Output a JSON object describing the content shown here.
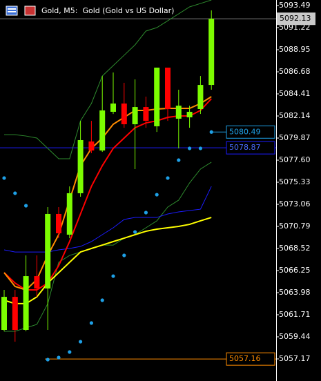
{
  "chart_data": {
    "type": "candlestick",
    "title": "Gold, M5:  Gold (Gold vs US Dollar)",
    "ylim": [
      5054.9,
      5094.06
    ],
    "yticks": [
      5093.49,
      5091.22,
      5088.95,
      5086.68,
      5084.41,
      5082.14,
      5079.87,
      {
        "value": 5077.6,
        "label": "5077.60"
      },
      5075.33,
      5073.06,
      5070.79,
      5068.52,
      5066.25,
      5063.98,
      5061.71,
      5059.44,
      5057.17
    ],
    "up_color": "#7cfc00",
    "down_color": "#ff0000",
    "open": [
      5060.15,
      5063.55,
      5060.15,
      5065.68,
      5064.41,
      5072.07,
      5069.94,
      5074.2,
      5079.52,
      5078.59,
      5082.57,
      5083.42,
      5081.29,
      5083.06,
      5081.08,
      5087.11,
      5081.86,
      5082.0,
      5082.85,
      5085.33
    ],
    "high": [
      5064.26,
      5064.26,
      5067.81,
      5067.81,
      5072.78,
      5072.78,
      5074.9,
      5081.64,
      5081.64,
      5086.25,
      5086.61,
      5085.55,
      5085.9,
      5084.13,
      5087.11,
      5087.11,
      5084.84,
      5083.2,
      5086.25,
      5092.99
    ],
    "low": [
      5060.01,
      5058.94,
      5060.01,
      5063.55,
      5060.15,
      5069.58,
      5069.58,
      5073.84,
      5078.31,
      5078.45,
      5082.35,
      5080.93,
      5076.68,
      5080.93,
      5080.5,
      5081.64,
      5078.81,
      5080.93,
      5082.35,
      5084.84
    ],
    "close": [
      5063.55,
      5060.15,
      5065.68,
      5064.41,
      5072.07,
      5070.08,
      5074.2,
      5079.66,
      5078.59,
      5082.71,
      5083.42,
      5081.29,
      5083.06,
      5081.64,
      5087.11,
      5082.85,
      5083.2,
      5082.57,
      5085.33,
      5092.13
    ],
    "series": [
      {
        "color": "#2e8b2e",
        "style": "line",
        "values": [
          5080.22,
          5080.22,
          5080.08,
          5079.87,
          5078.81,
          5077.74,
          5077.74,
          5081.64,
          5083.42,
          5086.25,
          5087.32,
          5088.38,
          5089.45,
          5090.87,
          5091.22,
          5091.93,
          5092.64,
          5093.35,
          5093.7,
          5094.06
        ]
      },
      {
        "color": "#2e8b2e",
        "style": "line",
        "values": [
          5060.01,
          5060.01,
          5060.36,
          5060.72,
          5062.85,
          5067.1,
          5067.81,
          5068.16,
          5068.52,
          5068.87,
          5068.87,
          5069.58,
          5069.94,
          5070.65,
          5071.36,
          5072.78,
          5073.49,
          5075.26,
          5076.68,
          5077.39
        ]
      },
      {
        "color": "#1c1cff",
        "style": "line",
        "values": [
          5068.38,
          5068.16,
          5068.16,
          5068.16,
          5068.16,
          5068.38,
          5068.52,
          5068.73,
          5069.23,
          5069.94,
          5070.65,
          5071.5,
          5071.71,
          5071.71,
          5071.71,
          5072.07,
          5072.28,
          5072.42,
          5072.56,
          5074.9
        ]
      },
      {
        "color": "#ffff00",
        "style": "line",
        "values": [
          5063.2,
          5062.85,
          5062.85,
          5063.55,
          5064.97,
          5066.04,
          5067.1,
          5068.16,
          5068.52,
          5068.87,
          5069.23,
          5069.58,
          5069.94,
          5070.29,
          5070.51,
          5070.65,
          5070.79,
          5071.0,
          5071.36,
          5071.71
        ]
      },
      {
        "color": "#ff0000",
        "style": "line",
        "values": [
          5066.04,
          5064.97,
          5064.26,
          5064.26,
          5064.97,
          5066.75,
          5069.23,
          5072.07,
          5074.9,
          5077.03,
          5078.81,
          5079.87,
          5080.93,
          5081.43,
          5081.64,
          5082.0,
          5082.14,
          5082.14,
          5082.71,
          5083.91
        ]
      },
      {
        "color": "#ff8c00",
        "style": "line",
        "values": [
          5066.04,
          5064.62,
          5064.26,
          5065.33,
          5067.81,
          5069.94,
          5073.49,
          5077.03,
          5078.81,
          5079.87,
          5081.29,
          5082.0,
          5082.71,
          5082.71,
          5082.85,
          5082.92,
          5082.92,
          5082.92,
          5083.42,
          5084.13
        ]
      },
      {
        "color": "#1ea0e6",
        "style": "dots",
        "values": [
          5075.76,
          5074.2,
          5072.92,
          null,
          5057.1,
          5057.31,
          5057.88,
          5058.94,
          5060.86,
          5063.2,
          5065.68,
          5067.81,
          5070.22,
          5072.21,
          5074.05,
          5075.76,
          5077.6,
          5078.81,
          5078.81,
          5080.49
        ]
      }
    ],
    "hlines": [
      {
        "value": 5092.13,
        "color": "#808080",
        "label_bg": "#c8c8c8",
        "label_color": "#000000"
      },
      {
        "value": 5078.87,
        "color": "#1c1cff",
        "label_bg": "#000000",
        "label_color": "#4a6cff"
      },
      {
        "value": 5057.16,
        "color": "#ff8c00",
        "label_bg": "#000000",
        "label_color": "#ff8c00"
      }
    ],
    "marker_label": {
      "series": 6,
      "index": 19
    }
  }
}
